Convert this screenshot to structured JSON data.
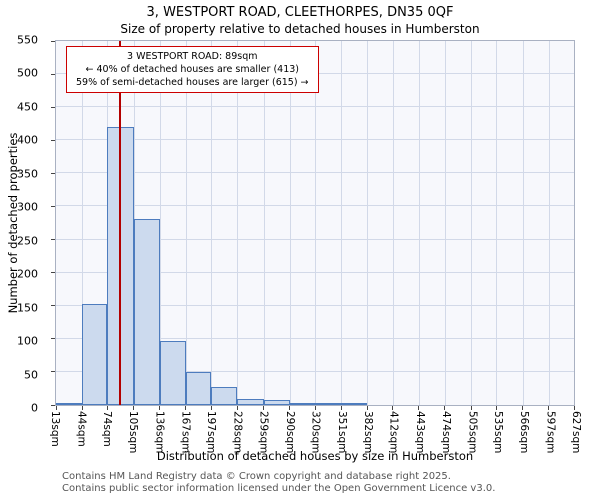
{
  "title": "3, WESTPORT ROAD, CLEETHORPES, DN35 0QF",
  "subtitle": "Size of property relative to detached houses in Humberston",
  "footer": {
    "line1": "Contains HM Land Registry data © Crown copyright and database right 2025.",
    "line2": "Contains public sector information licensed under the Open Government Licence v3.0."
  },
  "chart_data": {
    "type": "bar",
    "title": "3, WESTPORT ROAD, CLEETHORPES, DN35 0QF",
    "subtitle": "Size of property relative to detached houses in Humberston",
    "xlabel": "Distribution of detached houses by size in Humberston",
    "ylabel": "Number of detached properties",
    "xlim": [
      13,
      627
    ],
    "ylim": [
      0,
      550
    ],
    "grid": true,
    "legend": "none",
    "y_ticks": [
      0,
      50,
      100,
      150,
      200,
      250,
      300,
      350,
      400,
      450,
      500,
      550
    ],
    "x_ticks": [
      13,
      44,
      74,
      105,
      136,
      167,
      197,
      228,
      259,
      290,
      320,
      351,
      382,
      412,
      443,
      474,
      505,
      535,
      566,
      597,
      627
    ],
    "x_tick_labels": [
      "13sqm",
      "44sqm",
      "74sqm",
      "105sqm",
      "136sqm",
      "167sqm",
      "197sqm",
      "228sqm",
      "259sqm",
      "290sqm",
      "320sqm",
      "351sqm",
      "382sqm",
      "412sqm",
      "443sqm",
      "474sqm",
      "505sqm",
      "535sqm",
      "566sqm",
      "597sqm",
      "627sqm"
    ],
    "bins": [
      {
        "start": 13,
        "end": 44,
        "count": 3
      },
      {
        "start": 44,
        "end": 74,
        "count": 152
      },
      {
        "start": 74,
        "end": 105,
        "count": 420
      },
      {
        "start": 105,
        "end": 136,
        "count": 281
      },
      {
        "start": 136,
        "end": 167,
        "count": 97
      },
      {
        "start": 167,
        "end": 197,
        "count": 50
      },
      {
        "start": 197,
        "end": 228,
        "count": 27
      },
      {
        "start": 228,
        "end": 259,
        "count": 9
      },
      {
        "start": 259,
        "end": 290,
        "count": 7
      },
      {
        "start": 290,
        "end": 320,
        "count": 2
      },
      {
        "start": 320,
        "end": 351,
        "count": 1
      },
      {
        "start": 351,
        "end": 382,
        "count": 1
      },
      {
        "start": 382,
        "end": 412,
        "count": 0
      },
      {
        "start": 412,
        "end": 443,
        "count": 0
      },
      {
        "start": 443,
        "end": 474,
        "count": 0
      },
      {
        "start": 474,
        "end": 505,
        "count": 0
      },
      {
        "start": 505,
        "end": 535,
        "count": 0
      },
      {
        "start": 535,
        "end": 566,
        "count": 0
      },
      {
        "start": 566,
        "end": 597,
        "count": 0
      },
      {
        "start": 597,
        "end": 627,
        "count": 0
      }
    ],
    "marker": {
      "label": "3 WESTPORT ROAD",
      "value_sqm": 89,
      "color": "#b30000"
    },
    "annotation": {
      "lines": [
        "3 WESTPORT ROAD: 89sqm",
        "← 40% of detached houses are smaller (413)",
        "59% of semi-detached houses are larger (615) →"
      ],
      "border_color": "#cc0000"
    },
    "colors": {
      "bar_fill": "#ccdaee",
      "bar_edge": "#4d7cbe",
      "grid": "#d2d9e8",
      "plot_bg": "#f7f8fc",
      "marker_red": "#b30000"
    }
  }
}
